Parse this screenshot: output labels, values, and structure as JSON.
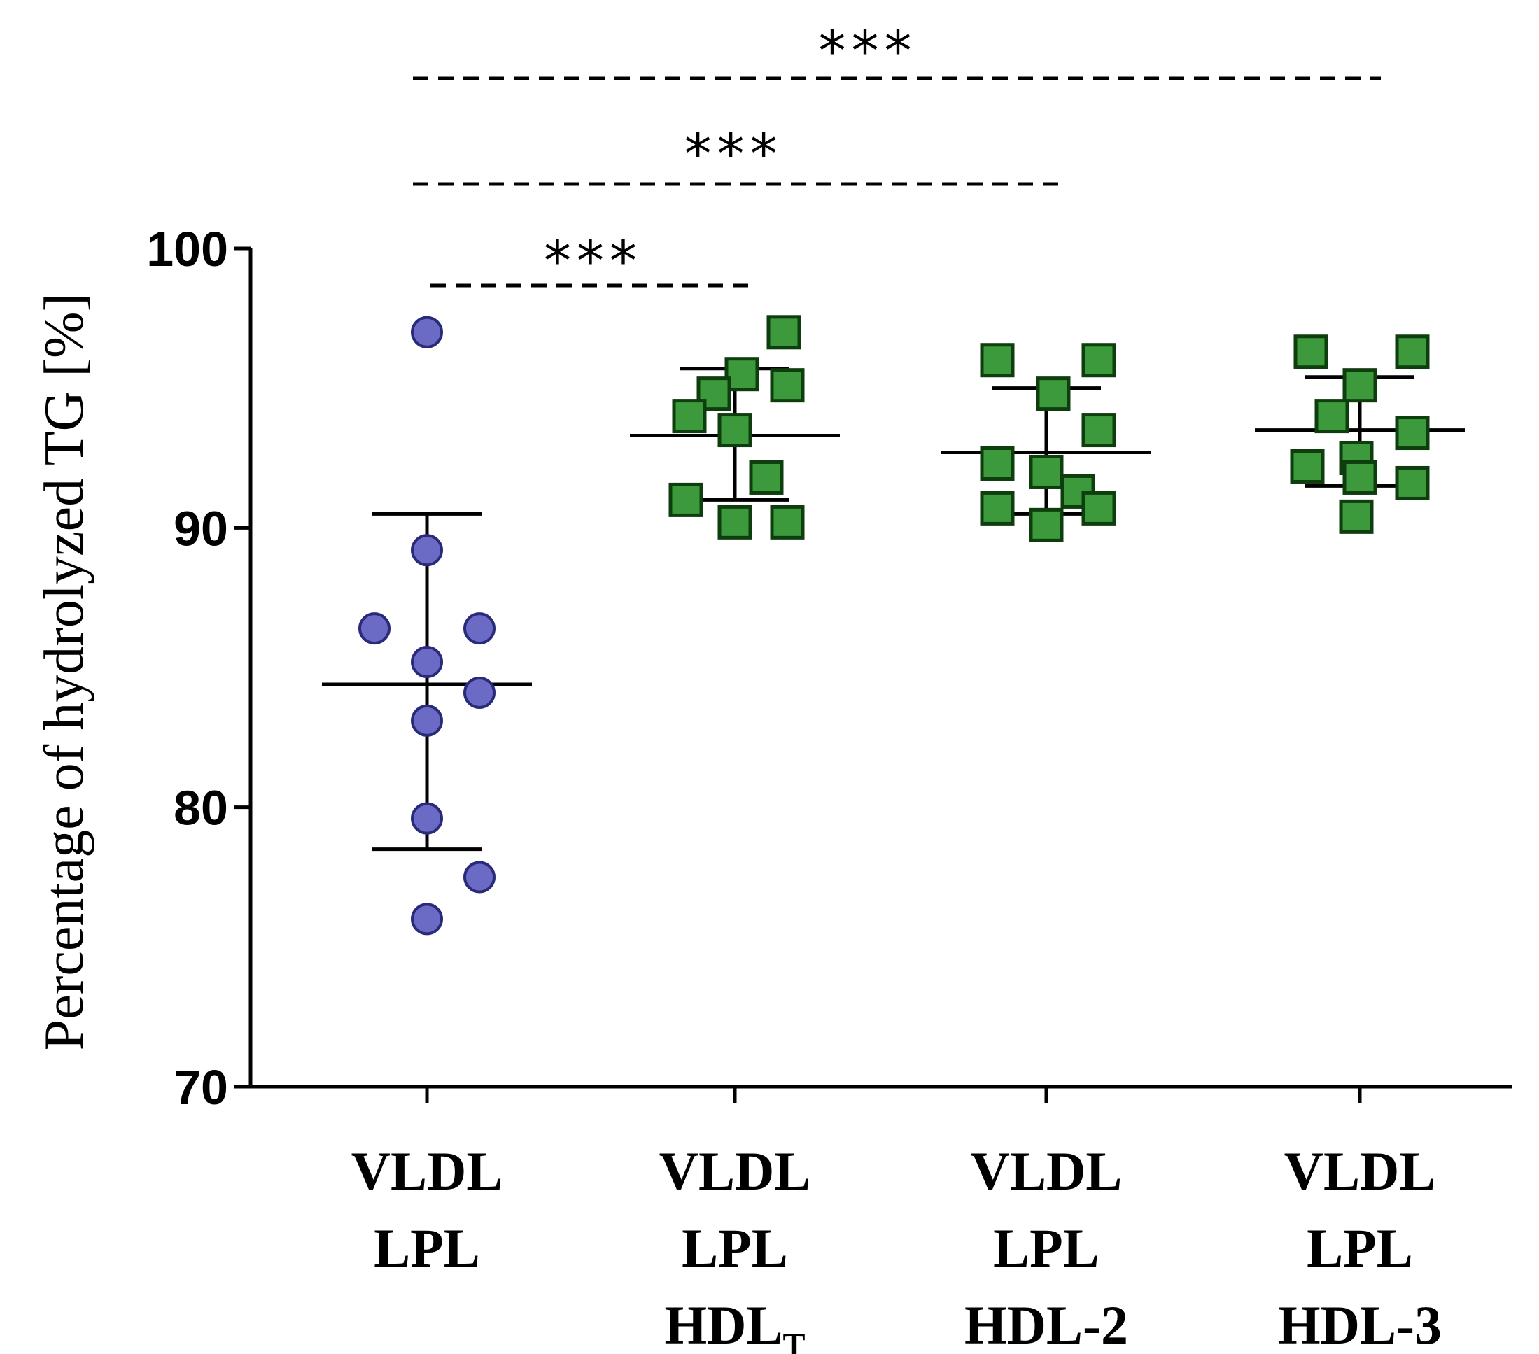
{
  "chart_data": {
    "type": "scatter",
    "title": "",
    "ylabel": "Percentage of hydrolyzed TG [%]",
    "xlabel": "",
    "ylim": [
      70,
      100
    ],
    "yticks": [
      70,
      80,
      90,
      100
    ],
    "grid": false,
    "legend": "none",
    "categories": [
      {
        "lines": [
          "VLDL",
          "LPL"
        ]
      },
      {
        "lines": [
          "VLDL",
          "LPL",
          "HDL"
        ],
        "subscript": "T"
      },
      {
        "lines": [
          "VLDL",
          "LPL",
          "HDL-2"
        ]
      },
      {
        "lines": [
          "VLDL",
          "LPL",
          "HDL-3"
        ]
      }
    ],
    "series": [
      {
        "category_index": 0,
        "marker": "circle",
        "color": "#6b6bc6",
        "edge_color": "#2a2a7a",
        "mean": 84.4,
        "sd_upper": 90.5,
        "sd_lower": 78.5,
        "points": [
          97.0,
          89.2,
          86.4,
          86.4,
          85.2,
          84.1,
          83.1,
          79.6,
          77.5,
          76.0
        ]
      },
      {
        "category_index": 1,
        "marker": "square",
        "color": "#3c9a3c",
        "edge_color": "#0e3d0e",
        "mean": 93.3,
        "sd_upper": 95.7,
        "sd_lower": 91.0,
        "points": [
          97.0,
          95.5,
          95.1,
          94.8,
          94.0,
          93.5,
          91.8,
          91.0,
          90.2,
          90.2
        ]
      },
      {
        "category_index": 2,
        "marker": "square",
        "color": "#3c9a3c",
        "edge_color": "#0e3d0e",
        "mean": 92.7,
        "sd_upper": 95.0,
        "sd_lower": 90.5,
        "points": [
          96.0,
          96.0,
          94.8,
          93.5,
          92.3,
          92.0,
          91.3,
          90.7,
          90.7,
          90.1
        ]
      },
      {
        "category_index": 3,
        "marker": "square",
        "color": "#3c9a3c",
        "edge_color": "#0e3d0e",
        "mean": 93.5,
        "sd_upper": 95.4,
        "sd_lower": 91.5,
        "points": [
          96.3,
          96.3,
          95.1,
          94.0,
          93.4,
          92.5,
          92.2,
          91.8,
          91.6,
          90.4
        ]
      }
    ],
    "significance": [
      {
        "from": 0,
        "to": 1,
        "label": "***"
      },
      {
        "from": 0,
        "to": 2,
        "label": "***"
      },
      {
        "from": 0,
        "to": 3,
        "label": "***"
      }
    ]
  }
}
